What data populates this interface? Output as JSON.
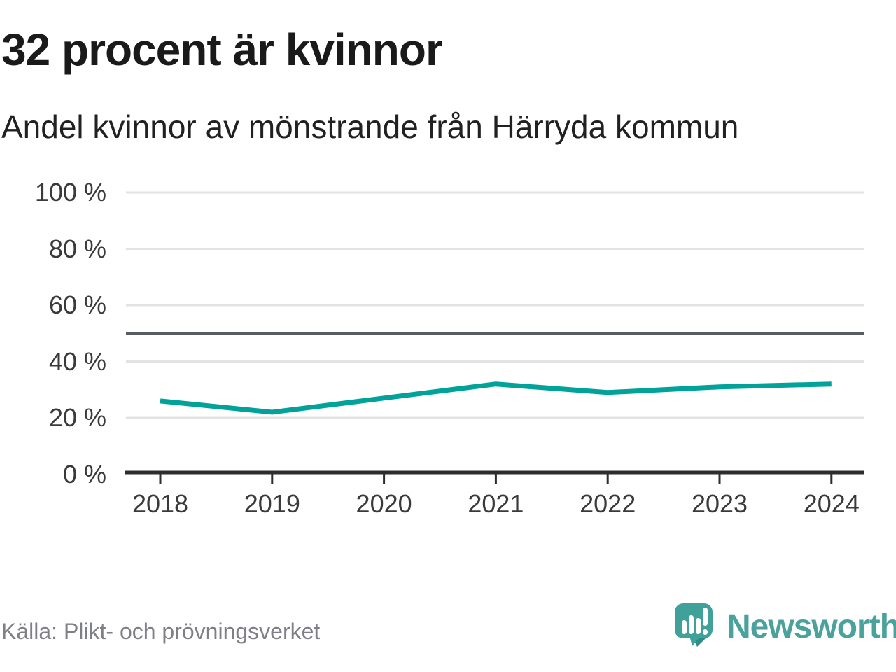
{
  "header": {
    "title": "32 procent är kvinnor",
    "subtitle": "Andel kvinnor av mönstrande från Härryda kommun"
  },
  "footer": {
    "source": "Källa: Plikt- och prövningsverket",
    "brand_name": "Newsworthy"
  },
  "colors": {
    "line": "#00a29a",
    "reference_line": "#5a5c64",
    "gridline": "#e3e3e3",
    "axis": "#2d2d2d",
    "title_text": "#1a1a1a",
    "tick_text": "#3a3a3a",
    "source_text": "#7f7f87",
    "logo_teal": "#3fa19a",
    "logo_shadow": "#2f8d88",
    "wordmark_teal": "#4ba29d"
  },
  "chart_data": {
    "type": "line",
    "title": "32 procent är kvinnor",
    "subtitle": "Andel kvinnor av mönstrande från Härryda kommun",
    "categories": [
      "2018",
      "2019",
      "2020",
      "2021",
      "2022",
      "2023",
      "2024"
    ],
    "series": [
      {
        "name": "Andel kvinnor av mönstrande",
        "values": [
          26,
          22,
          27,
          32,
          29,
          31,
          32
        ]
      }
    ],
    "unit": "%",
    "ylim": [
      0,
      100
    ],
    "yticks": [
      0,
      20,
      40,
      60,
      80,
      100
    ],
    "ytick_labels": [
      "0 %",
      "20 %",
      "40 %",
      "60 %",
      "80 %",
      "100 %"
    ],
    "reference_value": 50,
    "grid": true,
    "legend": "none",
    "source": "Källa: Plikt- och prövningsverket"
  }
}
